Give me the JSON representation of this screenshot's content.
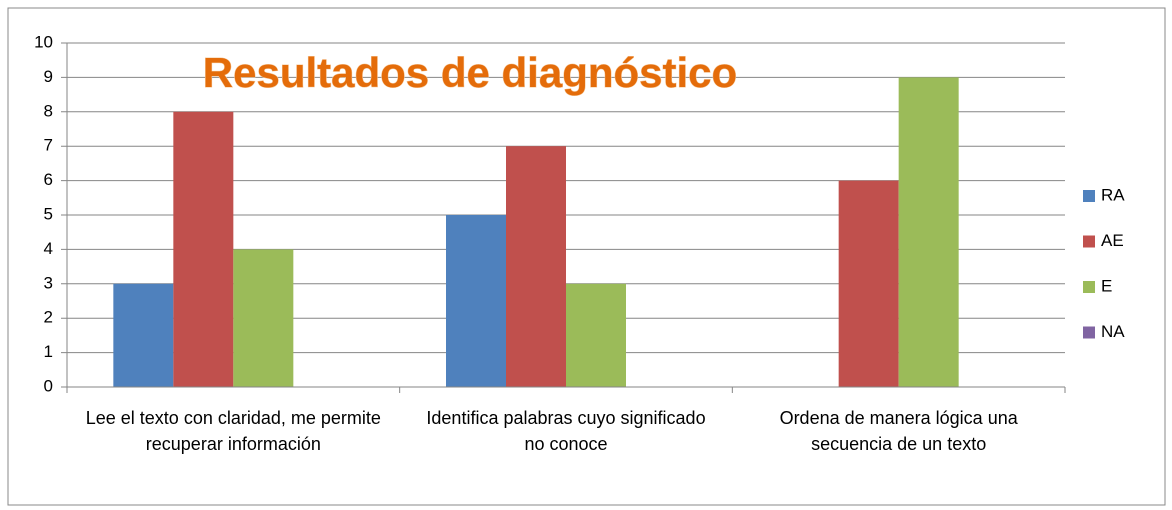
{
  "chart_data": {
    "type": "bar",
    "title": "Resultados de diagnóstico",
    "categories": [
      "Lee el texto con claridad, me permite recuperar información",
      "Identifica palabras cuyo significado no conoce",
      "Ordena de manera lógica una secuencia de un texto"
    ],
    "series": [
      {
        "name": "RA",
        "color": "#4f81bd",
        "values": [
          3,
          5,
          0
        ]
      },
      {
        "name": "AE",
        "color": "#c0504d",
        "values": [
          8,
          7,
          6
        ]
      },
      {
        "name": "E",
        "color": "#9bbb59",
        "values": [
          4,
          3,
          9
        ]
      },
      {
        "name": "NA",
        "color": "#8064a2",
        "values": [
          0,
          0,
          0
        ]
      }
    ],
    "ylim": [
      0,
      10
    ],
    "yticks": [
      0,
      1,
      2,
      3,
      4,
      5,
      6,
      7,
      8,
      9,
      10
    ],
    "grid": true,
    "legend": "right"
  }
}
